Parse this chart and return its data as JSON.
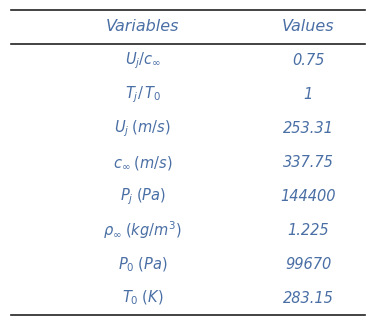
{
  "col_headers": [
    "Variables",
    "Values"
  ],
  "rows": [
    {
      "var": "$U_j/c_{\\infty}$",
      "val": "0.75"
    },
    {
      "var": "$T_j/\\,T_0$",
      "val": "1"
    },
    {
      "var": "$U_j\\;(m/s)$",
      "val": "253.31"
    },
    {
      "var": "$c_{\\infty}\\;(m/s)$",
      "val": "337.75"
    },
    {
      "var": "$P_j\\;(Pa)$",
      "val": "144400"
    },
    {
      "var": "$\\rho_{\\infty}\\;(kg/m^3)$",
      "val": "1.225"
    },
    {
      "var": "$P_0\\;(Pa)$",
      "val": "99670"
    },
    {
      "var": "$T_0\\;(K)$",
      "val": "283.15"
    }
  ],
  "text_color": "#4a6fa5",
  "header_color": "#4a6fa5",
  "bg_color": "#ffffff",
  "line_color": "#222222",
  "font_size": 10.5,
  "header_font_size": 11.5,
  "fig_width": 3.76,
  "fig_height": 3.25,
  "dpi": 100
}
